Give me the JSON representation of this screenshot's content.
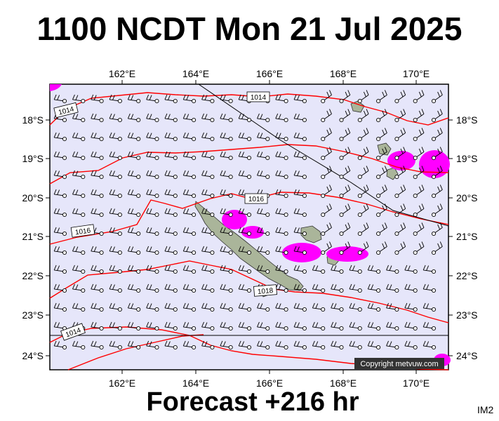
{
  "header": {
    "title": "1100 NCDT Mon 21 Jul 2025"
  },
  "footer": {
    "forecast": "Forecast +216 hr",
    "code": "IM2"
  },
  "map": {
    "lon_labels": [
      "162°E",
      "164°E",
      "166°E",
      "168°E",
      "170°E"
    ],
    "lat_labels": [
      "18°S",
      "19°S",
      "20°S",
      "21°S",
      "22°S",
      "23°S",
      "24°S"
    ],
    "isobar_labels": [
      "1014",
      "1014",
      "1016",
      "1016",
      "1018",
      "1014"
    ],
    "copyright": "Copyright metvuw.com",
    "colors": {
      "ocean": "#e6e6fa",
      "isobar": "#ff0000",
      "rain": "#ff00ff",
      "land": "#aab59a",
      "barb": "#000000"
    }
  }
}
